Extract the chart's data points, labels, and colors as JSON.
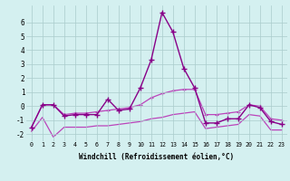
{
  "xlabel": "Windchill (Refroidissement éolien,°C)",
  "x": [
    0,
    1,
    2,
    3,
    4,
    5,
    6,
    7,
    8,
    9,
    10,
    11,
    12,
    13,
    14,
    15,
    16,
    17,
    18,
    19,
    20,
    21,
    22,
    23
  ],
  "line1": [
    -1.5,
    0.1,
    0.1,
    -0.7,
    -0.6,
    -0.6,
    -0.6,
    0.5,
    -0.3,
    -0.2,
    1.3,
    3.3,
    6.7,
    5.3,
    2.7,
    1.3,
    -1.2,
    -1.2,
    -0.9,
    -0.9,
    0.1,
    -0.1,
    -1.1,
    -1.3
  ],
  "line2": [
    -1.5,
    0.1,
    0.1,
    -0.6,
    -0.5,
    -0.5,
    -0.4,
    -0.3,
    -0.2,
    -0.1,
    0.1,
    0.6,
    0.9,
    1.1,
    1.2,
    1.2,
    -0.6,
    -0.6,
    -0.5,
    -0.4,
    0.1,
    0.0,
    -0.9,
    -1.0
  ],
  "line3": [
    -1.8,
    -0.8,
    -2.2,
    -1.5,
    -1.5,
    -1.5,
    -1.4,
    -1.4,
    -1.3,
    -1.2,
    -1.1,
    -0.9,
    -0.8,
    -0.6,
    -0.5,
    -0.4,
    -1.6,
    -1.5,
    -1.4,
    -1.3,
    -0.6,
    -0.7,
    -1.7,
    -1.7
  ],
  "line_color1": "#880088",
  "line_color2": "#bb44bb",
  "line_color3": "#bb44bb",
  "bg_color": "#d4f0f0",
  "grid_color": "#aacccc",
  "ylim": [
    -2.5,
    7.2
  ],
  "yticks": [
    -2,
    -1,
    0,
    1,
    2,
    3,
    4,
    5,
    6
  ]
}
